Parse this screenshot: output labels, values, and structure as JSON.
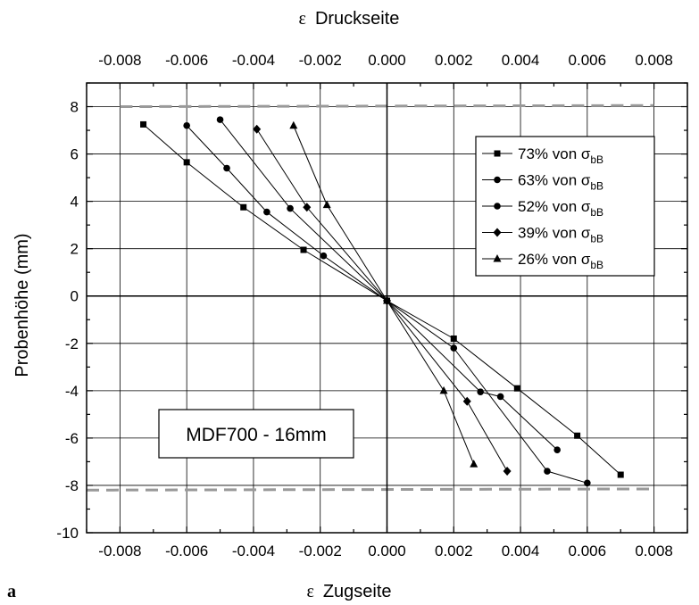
{
  "chart_data": {
    "type": "line",
    "panel_label": "a",
    "xlabel_top": {
      "symbol": "ε",
      "text": "Druckseite"
    },
    "xlabel_bottom": {
      "symbol": "ε",
      "text": "Zugseite"
    },
    "ylabel": "Probenhöhe (mm)",
    "xlim": [
      -0.009,
      0.009
    ],
    "ylim": [
      -10,
      9
    ],
    "x_ticks": [
      -0.008,
      -0.006,
      -0.004,
      -0.002,
      0,
      0.002,
      0.004,
      0.006,
      0.008
    ],
    "x_tick_labels": [
      "-0.008",
      "-0.006",
      "-0.004",
      "-0.002",
      "0.000",
      "0.002",
      "0.004",
      "0.006",
      "0.008"
    ],
    "y_ticks": [
      -10,
      -8,
      -6,
      -4,
      -2,
      0,
      2,
      4,
      6,
      8
    ],
    "y_tick_labels": [
      "-10",
      "-8",
      "-6",
      "-4",
      "-2",
      "0",
      "2",
      "4",
      "6",
      "8"
    ],
    "grid": true,
    "annotation": "MDF700 - 16mm",
    "boundaries": [
      {
        "y": [
          8.0,
          8.05
        ],
        "x": [
          -0.008,
          0.008
        ],
        "color": "#999999",
        "style": "dashed"
      },
      {
        "y": [
          -8.2,
          -8.15
        ],
        "x": [
          -0.009,
          0.008
        ],
        "color": "#999999",
        "style": "dashed"
      }
    ],
    "legend_position": "top-right",
    "series": [
      {
        "name": "73% von σbB",
        "legend": {
          "prefix": "73% von σ",
          "sub": "bB"
        },
        "marker": "square",
        "x": [
          -0.0073,
          -0.006,
          -0.0043,
          -0.0025,
          0,
          0.002,
          0.0039,
          0.0057,
          0.007
        ],
        "y": [
          7.25,
          5.65,
          3.75,
          1.95,
          -0.2,
          -1.8,
          -3.9,
          -5.9,
          -7.55
        ]
      },
      {
        "name": "63% von σbB",
        "legend": {
          "prefix": "63% von σ",
          "sub": "bB"
        },
        "marker": "circle",
        "x": [
          -0.006,
          -0.0048,
          -0.0036,
          -0.0019,
          0,
          0.002,
          0.0048,
          0.006
        ],
        "y": [
          7.2,
          5.4,
          3.55,
          1.7,
          -0.2,
          -2.2,
          -7.4,
          -7.9
        ]
      },
      {
        "name": "52% von σbB",
        "legend": {
          "prefix": "52% von σ",
          "sub": "bB"
        },
        "marker": "circle",
        "x": [
          -0.005,
          -0.0029,
          0,
          0.0028,
          0.0034,
          0.0051
        ],
        "y": [
          7.45,
          3.7,
          -0.2,
          -4.05,
          -4.25,
          -6.5
        ]
      },
      {
        "name": "39% von σbB",
        "legend": {
          "prefix": "39% von σ",
          "sub": "bB"
        },
        "marker": "diamond",
        "x": [
          -0.0039,
          -0.0024,
          0,
          0.0024,
          0.0036
        ],
        "y": [
          7.05,
          3.75,
          -0.2,
          -4.45,
          -7.4
        ]
      },
      {
        "name": "26% von σbB",
        "legend": {
          "prefix": "26% von σ",
          "sub": "bB"
        },
        "marker": "triangle",
        "x": [
          -0.0028,
          -0.0018,
          0,
          0.0017,
          0.0026
        ],
        "y": [
          7.2,
          3.85,
          -0.2,
          -4.0,
          -7.1
        ]
      }
    ]
  }
}
